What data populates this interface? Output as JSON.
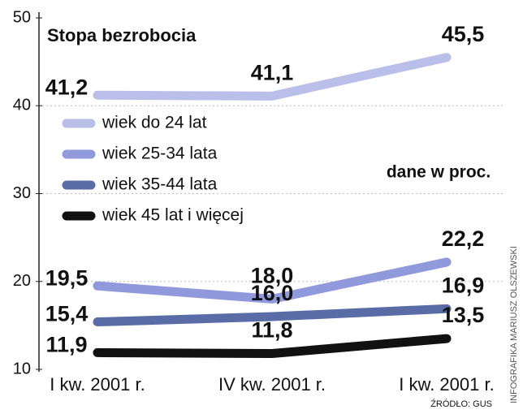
{
  "chart_data": {
    "type": "line",
    "title": "Stopa bezrobocia",
    "unit_note": "dane w proc.",
    "source": "ŹRÓDŁO: GUS",
    "credit": "INFOGRAFIKA MARIUSZ OLSZEWSKI",
    "categories": [
      "I kw. 2001 r.",
      "IV kw. 2001 r.",
      "I kw. 2001 r."
    ],
    "ylim": [
      10,
      50
    ],
    "yticks": [
      10,
      20,
      30,
      40,
      50
    ],
    "grid": true,
    "series": [
      {
        "name": "wiek do 24 lat",
        "color": "#b9bfe9",
        "values": [
          41.2,
          41.1,
          45.5
        ],
        "value_labels": [
          "41,2",
          "41,1",
          "45,5"
        ]
      },
      {
        "name": "wiek 25-34 lata",
        "color": "#8f99dc",
        "values": [
          19.5,
          18.0,
          22.2
        ],
        "value_labels": [
          "19,5",
          "18,0",
          "22,2"
        ]
      },
      {
        "name": "wiek 35-44 lata",
        "color": "#5a6ca6",
        "values": [
          15.4,
          16.0,
          16.9
        ],
        "value_labels": [
          "15,4",
          "16,0",
          "16,9"
        ]
      },
      {
        "name": "wiek 45 lat i więcej",
        "color": "#111111",
        "values": [
          11.9,
          11.8,
          13.5
        ],
        "value_labels": [
          "11,9",
          "11,8",
          "13,5"
        ]
      }
    ]
  }
}
